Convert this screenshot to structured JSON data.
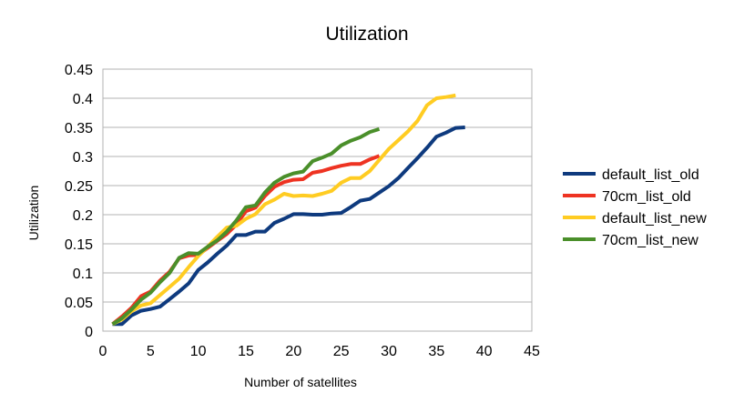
{
  "chart_data": {
    "type": "line",
    "title": "Utilization",
    "xlabel": "Number of satellites",
    "ylabel": "Utilization",
    "xlim": [
      0,
      45
    ],
    "ylim": [
      0,
      0.45
    ],
    "x_ticks": [
      0,
      5,
      10,
      15,
      20,
      25,
      30,
      35,
      40,
      45
    ],
    "y_ticks": [
      0,
      0.05,
      0.1,
      0.15,
      0.2,
      0.25,
      0.3,
      0.35,
      0.4,
      0.45
    ],
    "x_tick_labels": [
      "0",
      "5",
      "10",
      "15",
      "20",
      "25",
      "30",
      "35",
      "40",
      "45"
    ],
    "y_tick_labels": [
      "0",
      "0.05",
      "0.1",
      "0.15",
      "0.2",
      "0.25",
      "0.3",
      "0.35",
      "0.4",
      "0.45"
    ],
    "grid": "horizontal",
    "legend_position": "right",
    "series": [
      {
        "name": "default_list_old",
        "color": "#0e3a7e",
        "x": [
          1,
          2,
          3,
          4,
          5,
          6,
          7,
          8,
          9,
          10,
          11,
          12,
          13,
          14,
          15,
          16,
          17,
          18,
          19,
          20,
          21,
          22,
          23,
          24,
          25,
          26,
          27,
          28,
          29,
          30,
          31,
          32,
          33,
          34,
          35,
          36,
          37,
          38
        ],
        "values": [
          0.012,
          0.012,
          0.027,
          0.035,
          0.038,
          0.042,
          0.055,
          0.068,
          0.082,
          0.105,
          0.118,
          0.133,
          0.147,
          0.165,
          0.165,
          0.171,
          0.171,
          0.186,
          0.193,
          0.201,
          0.201,
          0.2,
          0.2,
          0.202,
          0.203,
          0.213,
          0.224,
          0.227,
          0.238,
          0.249,
          0.263,
          0.28,
          0.297,
          0.315,
          0.334,
          0.341,
          0.349,
          0.35
        ]
      },
      {
        "name": "70cm_list_old",
        "color": "#ee3322",
        "x": [
          1,
          2,
          3,
          4,
          5,
          6,
          7,
          8,
          9,
          10,
          11,
          12,
          13,
          14,
          15,
          16,
          17,
          18,
          19,
          20,
          21,
          22,
          23,
          24,
          25,
          26,
          27,
          28,
          29
        ],
        "values": [
          0.012,
          0.025,
          0.04,
          0.06,
          0.068,
          0.087,
          0.102,
          0.125,
          0.13,
          0.131,
          0.143,
          0.155,
          0.167,
          0.183,
          0.206,
          0.212,
          0.232,
          0.248,
          0.256,
          0.26,
          0.261,
          0.272,
          0.275,
          0.28,
          0.284,
          0.287,
          0.287,
          0.295,
          0.301
        ]
      },
      {
        "name": "default_list_new",
        "color": "#ffcc22",
        "x": [
          1,
          2,
          3,
          4,
          5,
          6,
          7,
          8,
          9,
          10,
          11,
          12,
          13,
          14,
          15,
          16,
          17,
          18,
          19,
          20,
          21,
          22,
          23,
          24,
          25,
          26,
          27,
          28,
          29,
          30,
          31,
          32,
          33,
          34,
          35,
          36,
          37
        ],
        "values": [
          0.012,
          0.02,
          0.034,
          0.044,
          0.048,
          0.062,
          0.076,
          0.09,
          0.11,
          0.129,
          0.145,
          0.162,
          0.178,
          0.181,
          0.193,
          0.201,
          0.218,
          0.226,
          0.236,
          0.232,
          0.233,
          0.232,
          0.236,
          0.241,
          0.255,
          0.263,
          0.263,
          0.275,
          0.294,
          0.313,
          0.328,
          0.343,
          0.361,
          0.388,
          0.4,
          0.402,
          0.405
        ]
      },
      {
        "name": "70cm_list_new",
        "color": "#4a8f2a",
        "x": [
          1,
          2,
          3,
          4,
          5,
          6,
          7,
          8,
          9,
          10,
          11,
          12,
          13,
          14,
          15,
          16,
          17,
          18,
          19,
          20,
          21,
          22,
          23,
          24,
          25,
          26,
          27,
          28,
          29
        ],
        "values": [
          0.012,
          0.022,
          0.037,
          0.054,
          0.066,
          0.084,
          0.1,
          0.126,
          0.134,
          0.133,
          0.145,
          0.156,
          0.171,
          0.19,
          0.213,
          0.216,
          0.238,
          0.255,
          0.265,
          0.271,
          0.274,
          0.292,
          0.298,
          0.305,
          0.319,
          0.327,
          0.333,
          0.342,
          0.347
        ]
      }
    ]
  }
}
